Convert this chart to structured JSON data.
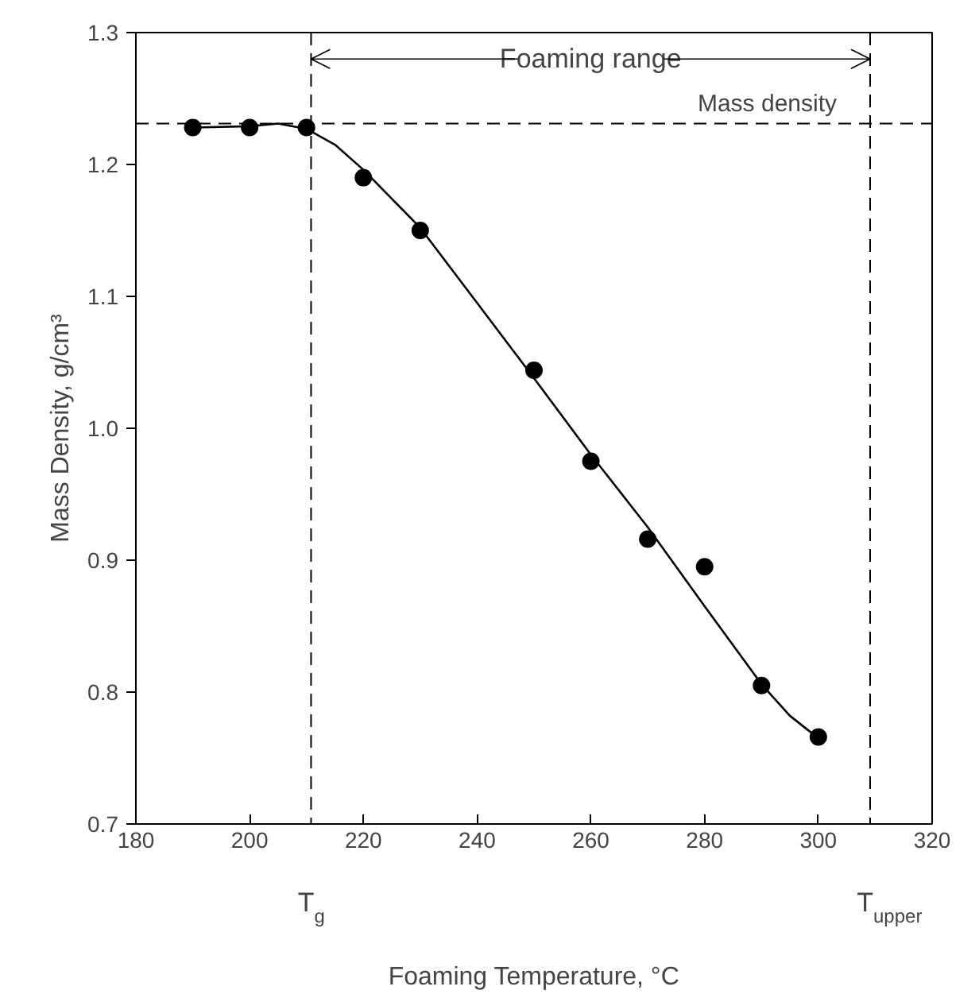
{
  "chart_data": {
    "type": "scatter",
    "xlabel": "Foaming Temperature, °C",
    "ylabel": "Mass Density, g/cm³",
    "xlim": [
      180,
      320
    ],
    "ylim": [
      0.7,
      1.3
    ],
    "xticks": [
      180,
      200,
      220,
      240,
      260,
      280,
      300,
      320
    ],
    "yticks": [
      {
        "value": 0.7,
        "label": "0.7"
      },
      {
        "value": 0.8,
        "label": "0.8"
      },
      {
        "value": 0.9,
        "label": "0.9"
      },
      {
        "value": 1.0,
        "label": "1.0"
      },
      {
        "value": 1.1,
        "label": "1.1"
      },
      {
        "value": 1.2,
        "label": "1.2"
      },
      {
        "value": 1.3,
        "label": "1.3"
      }
    ],
    "grid": false,
    "marker": "circle",
    "series": [
      {
        "type": "scatter",
        "color": "#000000",
        "x": [
          190,
          200,
          210,
          220,
          230,
          250,
          260,
          270,
          280,
          290,
          300
        ],
        "values": [
          1.228,
          1.228,
          1.228,
          1.19,
          1.15,
          1.044,
          0.975,
          0.916,
          0.895,
          0.805,
          0.766
        ]
      },
      {
        "type": "line",
        "color": "#000000",
        "marker": "none",
        "line_style": "solid",
        "x": [
          190,
          200,
          205,
          210,
          215,
          220,
          230,
          240,
          250,
          260,
          270,
          280,
          290,
          295,
          300
        ],
        "values": [
          1.228,
          1.229,
          1.231,
          1.227,
          1.215,
          1.196,
          1.152,
          1.095,
          1.038,
          0.98,
          0.925,
          0.865,
          0.806,
          0.782,
          0.765
        ]
      }
    ],
    "ref_lines": [
      {
        "axis": "y",
        "value": 1.231,
        "label": "Mass density",
        "line_style": "dashed",
        "color": "#000000"
      },
      {
        "axis": "x",
        "value": 210.8,
        "label": "T$_{g}$",
        "line_style": "dashed",
        "color": "#000000"
      },
      {
        "axis": "x",
        "value": 309.1,
        "label": "T$_{upper}$",
        "line_style": "dashed",
        "color": "#000000"
      }
    ],
    "annotations": [
      {
        "text": "Foaming range",
        "x": 309.1,
        "y": 1.28
      }
    ]
  }
}
